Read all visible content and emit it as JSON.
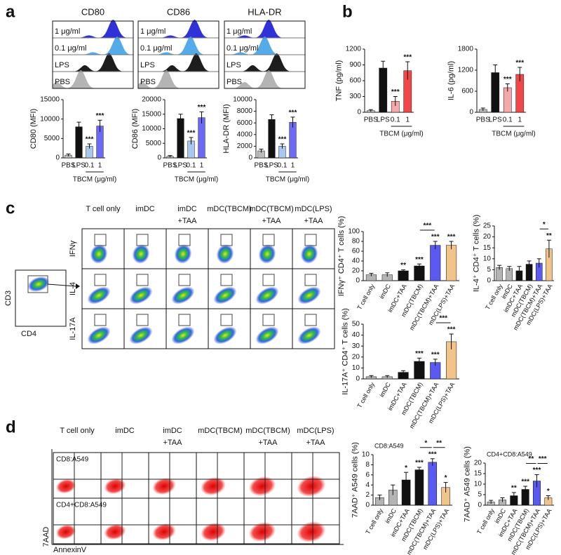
{
  "panel_labels": [
    "a",
    "b",
    "c",
    "d"
  ],
  "histograms": {
    "markers": [
      "CD80",
      "CD86",
      "HLA-DR"
    ],
    "rows": [
      "1 μg/ml",
      "0.1 μg/ml",
      "LPS",
      "PBS"
    ],
    "colors": [
      "#2626d6",
      "#4aa6e8",
      "#111111",
      "#b0b0b0"
    ]
  },
  "flow_c": {
    "gate_axes": [
      "CD3",
      "CD4"
    ],
    "columns": [
      [
        "T cell only"
      ],
      [
        "imDC"
      ],
      [
        "imDC",
        "+TAA"
      ],
      [
        "mDC(TBCM)"
      ],
      [
        "mDC(TBCM)",
        "+TAA"
      ],
      [
        "mDC(LPS)",
        "+TAA"
      ]
    ],
    "rows": [
      "IFNγ",
      "IL-4",
      "IL-17A"
    ]
  },
  "flow_d": {
    "columns": [
      [
        "T cell only"
      ],
      [
        "imDC"
      ],
      [
        "imDC",
        "+TAA"
      ],
      [
        "mDC(TBCM)"
      ],
      [
        "mDC(TBCM)",
        "+TAA"
      ],
      [
        "mDC(LPS)",
        "+TAA"
      ]
    ],
    "rows": [
      "CD8:A549",
      "CD4+CD8:A549"
    ],
    "y_label": "7AAD",
    "x_label": "AnnexinV"
  },
  "chart_data": [
    {
      "type": "bar",
      "y_label": "CD80 (MFI)",
      "categories": [
        "PBS",
        "LPS",
        "0.1",
        "1"
      ],
      "group_label": "TBCM (μg/ml)",
      "group_categories": [
        "0.1",
        "1"
      ],
      "values": [
        700,
        8000,
        3000,
        8200
      ],
      "errors": [
        300,
        1200,
        600,
        1500
      ],
      "colors": [
        "#bbbbbb",
        "#111111",
        "#a8c8f0",
        "#6a6af5"
      ],
      "ylim": [
        0,
        15000
      ],
      "yticks": [
        0,
        5000,
        10000,
        15000
      ],
      "significance": [
        null,
        null,
        "***",
        "***"
      ],
      "brackets": []
    },
    {
      "type": "bar",
      "y_label": "CD86 (MFI)",
      "categories": [
        "PBS",
        "LPS",
        "0.1",
        "1"
      ],
      "group_label": "TBCM (μg/ml)",
      "group_categories": [
        "0.1",
        "1"
      ],
      "values": [
        500,
        13500,
        5800,
        13800
      ],
      "errors": [
        300,
        1500,
        1200,
        2000
      ],
      "colors": [
        "#bbbbbb",
        "#111111",
        "#a8c8f0",
        "#6a6af5"
      ],
      "ylim": [
        0,
        20000
      ],
      "yticks": [
        0,
        5000,
        10000,
        15000,
        20000
      ],
      "significance": [
        null,
        null,
        "***",
        "***"
      ],
      "brackets": []
    },
    {
      "type": "bar",
      "y_label": "HLA-DR (MFI)",
      "categories": [
        "PBS",
        "LPS",
        "0.1",
        "1"
      ],
      "group_label": "TBCM (μg/ml)",
      "group_categories": [
        "0.1",
        "1"
      ],
      "values": [
        1200,
        6600,
        2000,
        6100
      ],
      "errors": [
        300,
        800,
        400,
        900
      ],
      "colors": [
        "#bbbbbb",
        "#111111",
        "#a8c8f0",
        "#6a6af5"
      ],
      "ylim": [
        0,
        10000
      ],
      "yticks": [
        0,
        2000,
        4000,
        6000,
        8000,
        10000
      ],
      "significance": [
        null,
        null,
        "***",
        "***"
      ],
      "brackets": []
    },
    {
      "type": "bar",
      "y_label": "TNF (pg/ml)",
      "categories": [
        "PBS",
        "LPS",
        "0.1",
        "1"
      ],
      "group_label": "TBCM (μg/ml)",
      "group_categories": [
        "0.1",
        "1"
      ],
      "values": [
        30,
        840,
        210,
        790
      ],
      "errors": [
        20,
        130,
        90,
        170
      ],
      "colors": [
        "#bbbbbb",
        "#111111",
        "#f5a8a8",
        "#f04848"
      ],
      "ylim": [
        0,
        1200
      ],
      "yticks": [
        0,
        300,
        600,
        900,
        1200
      ],
      "significance": [
        null,
        null,
        "***",
        "***"
      ],
      "brackets": []
    },
    {
      "type": "bar",
      "y_label": "IL-6 (pg/ml)",
      "categories": [
        "PBS",
        "LPS",
        "0.1",
        "1"
      ],
      "group_label": "TBCM (μg/ml)",
      "group_categories": [
        "0.1",
        "1"
      ],
      "values": [
        80,
        1130,
        700,
        1080
      ],
      "errors": [
        40,
        220,
        110,
        200
      ],
      "colors": [
        "#bbbbbb",
        "#111111",
        "#f5a8a8",
        "#f04848"
      ],
      "ylim": [
        0,
        1800
      ],
      "yticks": [
        0,
        600,
        1200,
        1800
      ],
      "significance": [
        null,
        null,
        "***",
        "***"
      ],
      "brackets": []
    },
    {
      "type": "bar",
      "y_label": "IFNγ⁺ CD4⁺ T cells (%)",
      "categories": [
        "T cell only",
        "imDC",
        "imDC+TAA",
        "mDC(TBCM)",
        "mDC(TBCM)+TAA",
        "mDC(LPS)+TAA"
      ],
      "values": [
        12,
        12,
        20,
        30,
        72,
        72
      ],
      "errors": [
        3,
        4,
        2,
        4,
        8,
        8
      ],
      "colors": [
        "#b4b4b4",
        "#b4b4b4",
        "#111111",
        "#111111",
        "#5a5af0",
        "#f2c48a"
      ],
      "ylim": [
        0,
        100
      ],
      "yticks": [
        0,
        20,
        40,
        60,
        80,
        100
      ],
      "significance": [
        null,
        null,
        "**",
        "***",
        "***",
        "***"
      ],
      "brackets": [
        {
          "label": "***",
          "from": "mDC(TBCM)",
          "to": "mDC(TBCM)+TAA"
        }
      ]
    },
    {
      "type": "bar",
      "y_label": "IL-4⁺ CD4⁺ T cells (%)",
      "categories": [
        "T cell only",
        "imDC",
        "imDC+TAA",
        "mDC(TBCM)",
        "mDC(TBCM)+TAA",
        "mDC(LPS)+TAA"
      ],
      "values": [
        6,
        5.5,
        4.5,
        7.5,
        8,
        14.5
      ],
      "errors": [
        1,
        1,
        2,
        1.5,
        2,
        4
      ],
      "colors": [
        "#b4b4b4",
        "#b4b4b4",
        "#111111",
        "#111111",
        "#5a5af0",
        "#f2c48a"
      ],
      "ylim": [
        0,
        25
      ],
      "yticks": [
        0,
        5,
        10,
        15,
        20,
        25
      ],
      "significance": [
        null,
        null,
        null,
        null,
        null,
        "**"
      ],
      "brackets": [
        {
          "label": "*",
          "from": "mDC(TBCM)+TAA",
          "to": "mDC(LPS)+TAA"
        }
      ]
    },
    {
      "type": "bar",
      "y_label": "IL-17A⁺ CD4⁺ T cells (%)",
      "categories": [
        "T cell only",
        "imDC",
        "imDC+TAA",
        "mDC(TBCM)",
        "mDC(TBCM)+TAA",
        "mDC(LPS)+TAA"
      ],
      "values": [
        2,
        2,
        6,
        16,
        15,
        34
      ],
      "errors": [
        1,
        1,
        1.5,
        3,
        3,
        7
      ],
      "colors": [
        "#b4b4b4",
        "#b4b4b4",
        "#111111",
        "#111111",
        "#5a5af0",
        "#f2c48a"
      ],
      "ylim": [
        0,
        50
      ],
      "yticks": [
        0,
        10,
        20,
        30,
        40,
        50
      ],
      "significance": [
        null,
        null,
        null,
        "***",
        "***",
        "***"
      ],
      "brackets": [
        {
          "label": "***",
          "from": "mDC(TBCM)+TAA",
          "to": "mDC(LPS)+TAA"
        }
      ]
    },
    {
      "type": "bar",
      "y_label": "7AAD⁺ A549 cells (%)",
      "subtitle": "CD8:A549",
      "categories": [
        "T cell only",
        "imDC",
        "imDC+TAA",
        "mDC(TBCM)",
        "mDC(TBCM)+TAA",
        "mDC(LPS)+TAA"
      ],
      "values": [
        1.5,
        3,
        5,
        7,
        8.5,
        3.5
      ],
      "errors": [
        0.5,
        1,
        1.5,
        0.5,
        0.7,
        1
      ],
      "colors": [
        "#b4b4b4",
        "#b4b4b4",
        "#111111",
        "#111111",
        "#5a5af0",
        "#f2c48a"
      ],
      "ylim": [
        0,
        10
      ],
      "yticks": [
        0,
        2,
        4,
        6,
        8,
        10
      ],
      "significance": [
        null,
        null,
        "*",
        "***",
        "***",
        "*"
      ],
      "brackets": [
        {
          "label": "*",
          "from": "mDC(TBCM)",
          "to": "mDC(TBCM)+TAA"
        },
        {
          "label": "**",
          "from": "mDC(TBCM)+TAA",
          "to": "mDC(LPS)+TAA"
        }
      ]
    },
    {
      "type": "bar",
      "y_label": "7AAD⁺ A549 cells (%)",
      "subtitle": "CD4+CD8:A549",
      "categories": [
        "T cell only",
        "imDC",
        "imDC+TAA",
        "mDC(TBCM)",
        "mDC(TBCM)+TAA",
        "mDC(LPS)+TAA"
      ],
      "values": [
        1.5,
        2.5,
        4.5,
        7.5,
        11.5,
        3.5
      ],
      "errors": [
        0.8,
        1,
        1.5,
        1.5,
        3,
        1
      ],
      "colors": [
        "#b4b4b4",
        "#b4b4b4",
        "#111111",
        "#111111",
        "#5a5af0",
        "#f2c48a"
      ],
      "ylim": [
        0,
        20
      ],
      "yticks": [
        0,
        5,
        10,
        15,
        20
      ],
      "significance": [
        null,
        null,
        "**",
        "***",
        "***",
        "*"
      ],
      "brackets": [
        {
          "label": "**",
          "from": "mDC(TBCM)",
          "to": "mDC(TBCM)+TAA"
        },
        {
          "label": "***",
          "from": "mDC(TBCM)+TAA",
          "to": "mDC(LPS)+TAA"
        }
      ]
    }
  ]
}
